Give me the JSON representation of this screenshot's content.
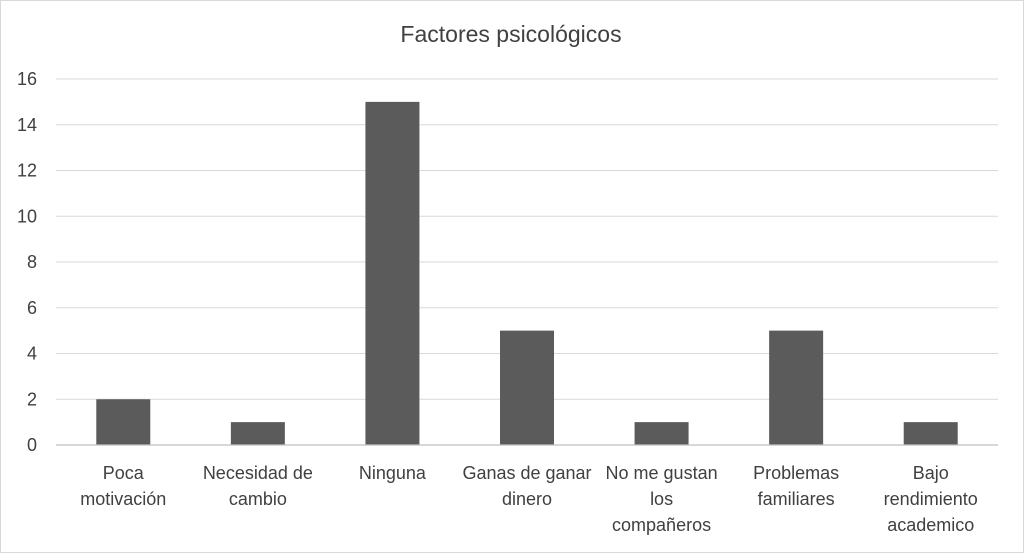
{
  "chart_data": {
    "type": "bar",
    "title": "Factores psicológicos",
    "categories": [
      [
        "Poca",
        "motivación"
      ],
      [
        "Necesidad de",
        "cambio"
      ],
      [
        "Ninguna"
      ],
      [
        "Ganas de ganar",
        "dinero"
      ],
      [
        "No me gustan",
        "los",
        "compañeros"
      ],
      [
        "Problemas",
        "familiares"
      ],
      [
        "Bajo",
        "rendimiento",
        "academico"
      ]
    ],
    "values": [
      2,
      1,
      15,
      5,
      1,
      5,
      1
    ],
    "ylim": [
      0,
      16
    ],
    "yticks": [
      0,
      2,
      4,
      6,
      8,
      10,
      12,
      14,
      16
    ],
    "grid": true,
    "legend": "none",
    "bar_color": "#5b5b5b",
    "grid_color": "#d9d9d9"
  }
}
